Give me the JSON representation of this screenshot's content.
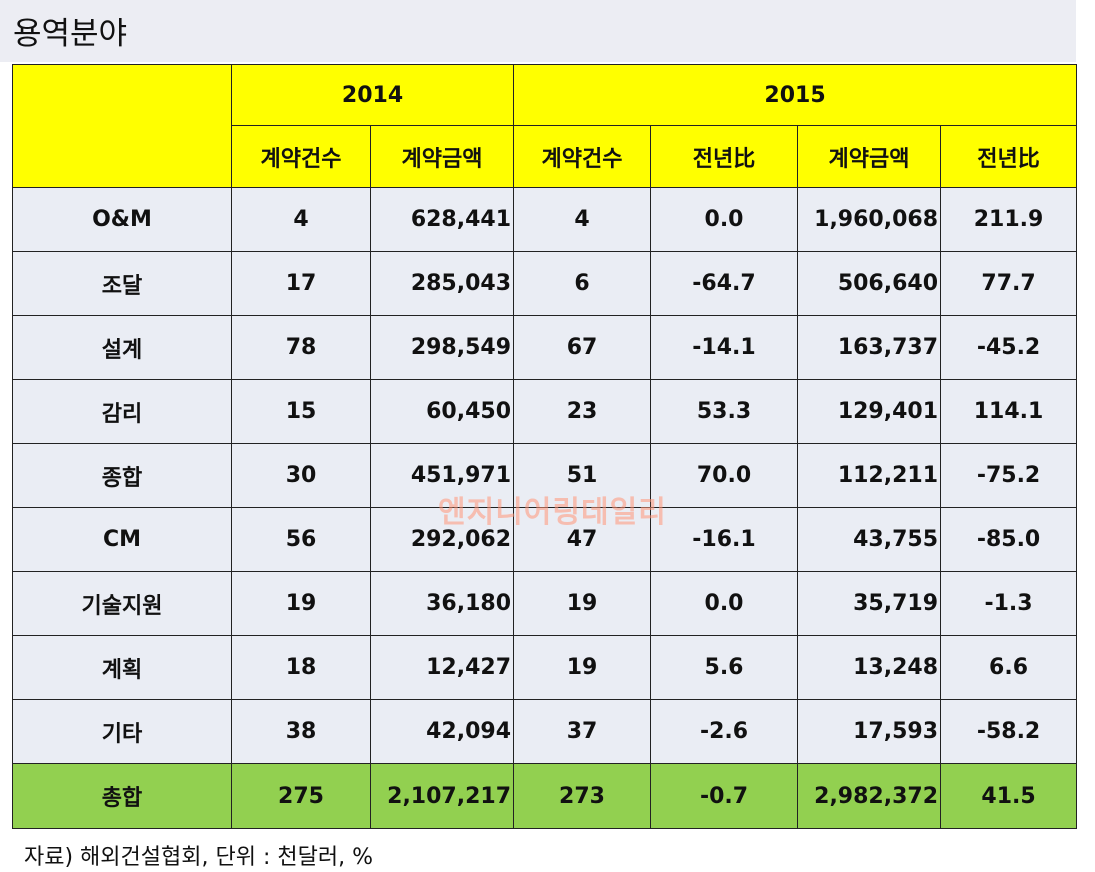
{
  "title": "용역분야",
  "years": {
    "y2014": "2014",
    "y2015": "2015"
  },
  "headers": {
    "count_2014": "계약건수",
    "amount_2014": "계약금액",
    "count_2015": "계약건수",
    "count_yoy": "전년比",
    "amount_2015": "계약금액",
    "amount_yoy": "전년比"
  },
  "rows": [
    {
      "category": "O&M",
      "count_2014": "4",
      "amount_2014": "628,441",
      "count_2015": "4",
      "count_yoy": "0.0",
      "amount_2015": "1,960,068",
      "amount_yoy": "211.9"
    },
    {
      "category": "조달",
      "count_2014": "17",
      "amount_2014": "285,043",
      "count_2015": "6",
      "count_yoy": "-64.7",
      "amount_2015": "506,640",
      "amount_yoy": "77.7"
    },
    {
      "category": "설계",
      "count_2014": "78",
      "amount_2014": "298,549",
      "count_2015": "67",
      "count_yoy": "-14.1",
      "amount_2015": "163,737",
      "amount_yoy": "-45.2"
    },
    {
      "category": "감리",
      "count_2014": "15",
      "amount_2014": "60,450",
      "count_2015": "23",
      "count_yoy": "53.3",
      "amount_2015": "129,401",
      "amount_yoy": "114.1"
    },
    {
      "category": "종합",
      "count_2014": "30",
      "amount_2014": "451,971",
      "count_2015": "51",
      "count_yoy": "70.0",
      "amount_2015": "112,211",
      "amount_yoy": "-75.2"
    },
    {
      "category": "CM",
      "count_2014": "56",
      "amount_2014": "292,062",
      "count_2015": "47",
      "count_yoy": "-16.1",
      "amount_2015": "43,755",
      "amount_yoy": "-85.0"
    },
    {
      "category": "기술지원",
      "count_2014": "19",
      "amount_2014": "36,180",
      "count_2015": "19",
      "count_yoy": "0.0",
      "amount_2015": "35,719",
      "amount_yoy": "-1.3"
    },
    {
      "category": "계획",
      "count_2014": "18",
      "amount_2014": "12,427",
      "count_2015": "19",
      "count_yoy": "5.6",
      "amount_2015": "13,248",
      "amount_yoy": "6.6"
    },
    {
      "category": "기타",
      "count_2014": "38",
      "amount_2014": "42,094",
      "count_2015": "37",
      "count_yoy": "-2.6",
      "amount_2015": "17,593",
      "amount_yoy": "-58.2"
    }
  ],
  "total": {
    "category": "총합",
    "count_2014": "275",
    "amount_2014": "2,107,217",
    "count_2015": "273",
    "count_yoy": "-0.7",
    "amount_2015": "2,982,372",
    "amount_yoy": "41.5"
  },
  "watermark": "엔지니어링데일리",
  "source": "자료) 해외건설협회, 단위 : 천달러, %",
  "colors": {
    "header": "#ffff00",
    "body": "#eaedf4",
    "total": "#92d050",
    "title_bar": "#ecedf3"
  }
}
